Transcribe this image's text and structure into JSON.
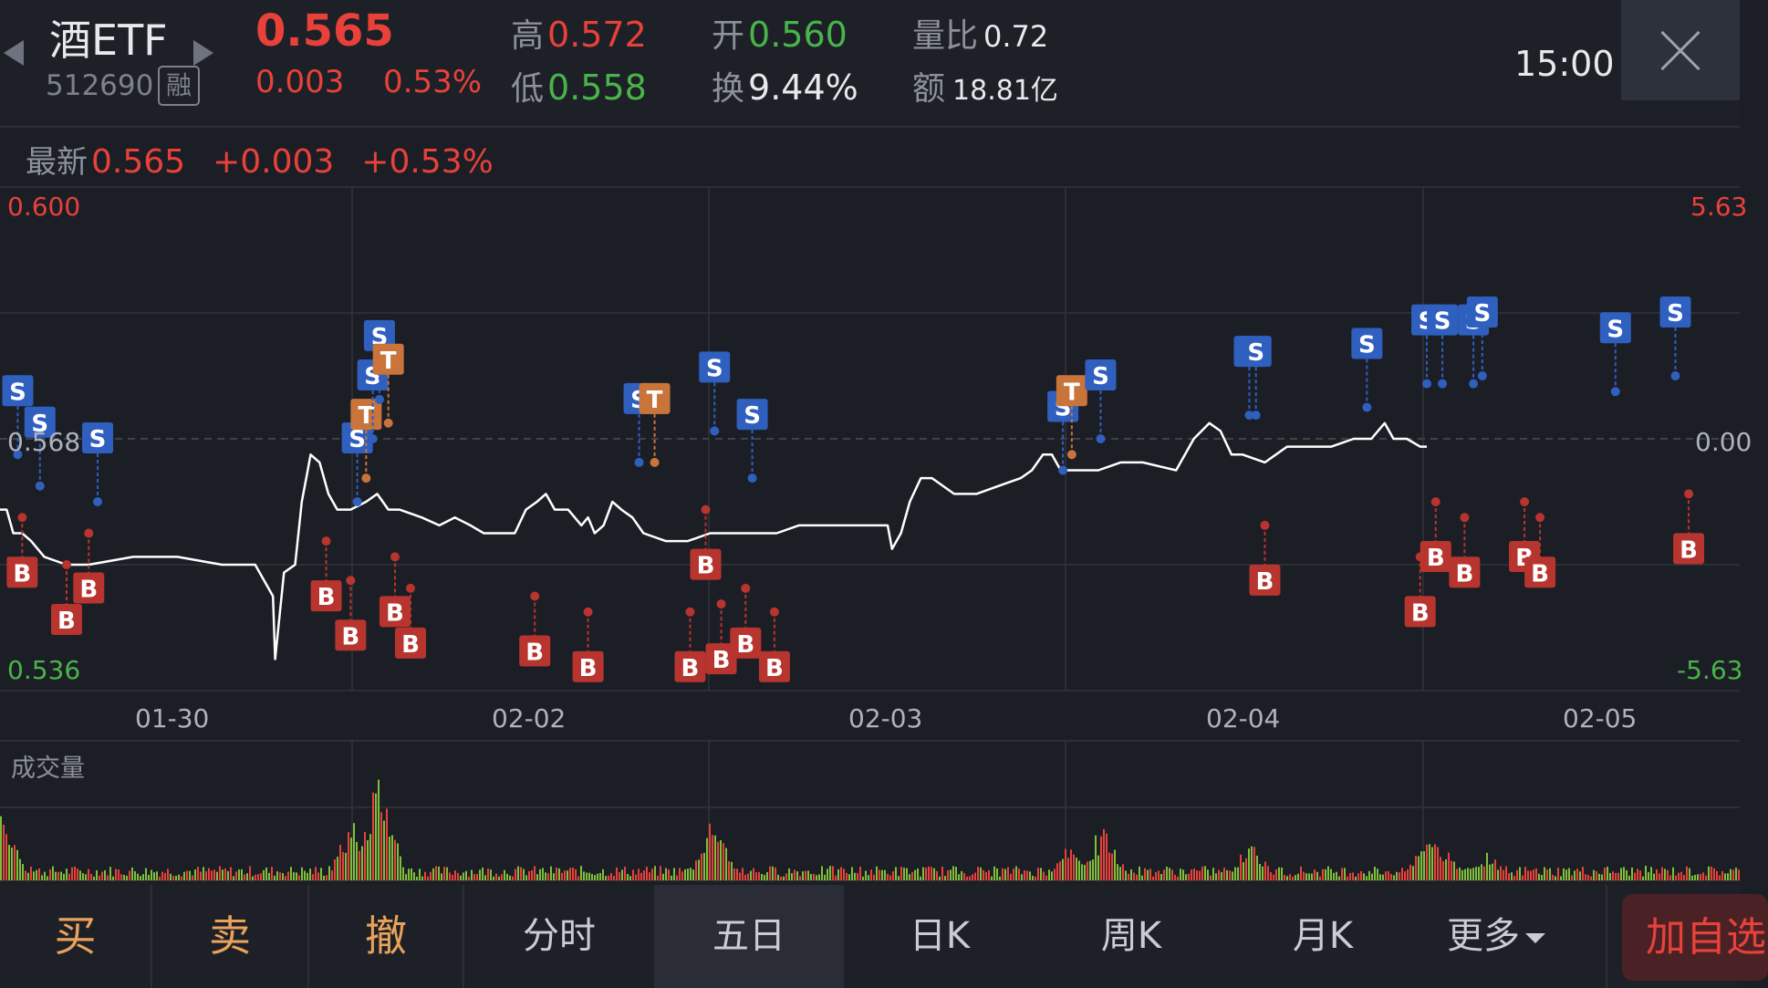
{
  "header": {
    "stock_name": "酒ETF",
    "stock_code": "512690",
    "margin_badge": "融",
    "price": "0.565",
    "change": "0.003",
    "change_pct": "0.53%",
    "high_label": "高",
    "high_value": "0.572",
    "low_label": "低",
    "low_value": "0.558",
    "open_label": "开",
    "open_value": "0.560",
    "turnover_label": "换",
    "turnover_value": "9.44%",
    "volume_ratio_label": "量比",
    "volume_ratio_value": "0.72",
    "amount_label": "额",
    "amount_value": "18.81亿",
    "time": "15:00"
  },
  "latest": {
    "label": "最新",
    "price": "0.565",
    "change": "+0.003",
    "change_pct": "+0.53%"
  },
  "chart_data": {
    "type": "line",
    "y_labels": {
      "top": "0.600",
      "mid": "0.568",
      "bottom": "0.536"
    },
    "right_labels": {
      "top": "5.63",
      "mid": "0.00",
      "bottom": "-5.63"
    },
    "x_labels": [
      "01-30",
      "02-02",
      "02-03",
      "02-04",
      "02-05"
    ],
    "volume_label": "成交量",
    "ylim": [
      0.536,
      0.6
    ],
    "reference": 0.568,
    "price_path": [
      [
        0,
        0.559
      ],
      [
        3,
        0.559
      ],
      [
        6,
        0.556
      ],
      [
        10,
        0.556
      ],
      [
        14,
        0.555
      ],
      [
        20,
        0.553
      ],
      [
        30,
        0.552
      ],
      [
        40,
        0.552
      ],
      [
        60,
        0.553
      ],
      [
        80,
        0.553
      ],
      [
        100,
        0.552
      ],
      [
        115,
        0.552
      ],
      [
        123,
        0.548
      ],
      [
        124,
        0.54
      ],
      [
        128,
        0.551
      ],
      [
        133,
        0.552
      ],
      [
        136,
        0.56
      ],
      [
        138,
        0.563
      ],
      [
        140,
        0.566
      ],
      [
        144,
        0.565
      ],
      [
        148,
        0.561
      ],
      [
        152,
        0.559
      ],
      [
        158,
        0.559
      ],
      [
        165,
        0.56
      ],
      [
        170,
        0.561
      ],
      [
        175,
        0.559
      ],
      [
        180,
        0.559
      ],
      [
        190,
        0.558
      ],
      [
        198,
        0.557
      ],
      [
        205,
        0.558
      ],
      [
        212,
        0.557
      ],
      [
        218,
        0.556
      ],
      [
        225,
        0.556
      ],
      [
        232,
        0.556
      ],
      [
        237,
        0.559
      ],
      [
        242,
        0.56
      ],
      [
        246,
        0.561
      ],
      [
        250,
        0.559
      ],
      [
        256,
        0.559
      ],
      [
        262,
        0.557
      ],
      [
        265,
        0.558
      ],
      [
        268,
        0.556
      ],
      [
        272,
        0.557
      ],
      [
        276,
        0.56
      ],
      [
        280,
        0.559
      ],
      [
        285,
        0.558
      ],
      [
        290,
        0.556
      ],
      [
        300,
        0.555
      ],
      [
        310,
        0.555
      ],
      [
        320,
        0.556
      ],
      [
        340,
        0.556
      ],
      [
        350,
        0.556
      ],
      [
        360,
        0.557
      ],
      [
        380,
        0.557
      ],
      [
        395,
        0.557
      ],
      [
        400,
        0.557
      ],
      [
        402,
        0.554
      ],
      [
        406,
        0.556
      ],
      [
        410,
        0.56
      ],
      [
        415,
        0.563
      ],
      [
        420,
        0.563
      ],
      [
        430,
        0.561
      ],
      [
        440,
        0.561
      ],
      [
        450,
        0.562
      ],
      [
        460,
        0.563
      ],
      [
        465,
        0.564
      ],
      [
        470,
        0.566
      ],
      [
        474,
        0.566
      ],
      [
        478,
        0.564
      ],
      [
        485,
        0.564
      ],
      [
        495,
        0.564
      ],
      [
        505,
        0.565
      ],
      [
        515,
        0.565
      ],
      [
        530,
        0.564
      ],
      [
        534,
        0.566
      ],
      [
        538,
        0.568
      ],
      [
        545,
        0.57
      ],
      [
        550,
        0.569
      ],
      [
        555,
        0.566
      ],
      [
        560,
        0.566
      ],
      [
        570,
        0.565
      ],
      [
        580,
        0.567
      ],
      [
        590,
        0.567
      ],
      [
        600,
        0.567
      ],
      [
        610,
        0.568
      ],
      [
        618,
        0.568
      ],
      [
        624,
        0.57
      ],
      [
        628,
        0.568
      ],
      [
        634,
        0.568
      ],
      [
        640,
        0.567
      ],
      [
        643,
        0.567
      ]
    ],
    "trade_markers": [
      {
        "type": "S",
        "x": 8,
        "price": 0.566,
        "color": "#2f5fbf"
      },
      {
        "type": "B",
        "x": 10,
        "price": 0.558,
        "color": "#b8342f"
      },
      {
        "type": "S",
        "x": 18,
        "price": 0.562,
        "color": "#2f5fbf"
      },
      {
        "type": "B",
        "x": 30,
        "price": 0.552,
        "color": "#b8342f"
      },
      {
        "type": "B",
        "x": 40,
        "price": 0.556,
        "color": "#b8342f"
      },
      {
        "type": "S",
        "x": 44,
        "price": 0.56,
        "color": "#2f5fbf"
      },
      {
        "type": "B",
        "x": 147,
        "price": 0.555,
        "color": "#b8342f"
      },
      {
        "type": "B",
        "x": 158,
        "price": 0.55,
        "color": "#b8342f"
      },
      {
        "type": "S",
        "x": 161,
        "price": 0.56,
        "color": "#2f5fbf"
      },
      {
        "type": "T",
        "x": 165,
        "price": 0.563,
        "color": "#c8743a"
      },
      {
        "type": "S",
        "x": 168,
        "price": 0.568,
        "color": "#2f5fbf"
      },
      {
        "type": "S",
        "x": 171,
        "price": 0.573,
        "color": "#2f5fbf"
      },
      {
        "type": "T",
        "x": 175,
        "price": 0.57,
        "color": "#c8743a"
      },
      {
        "type": "B",
        "x": 178,
        "price": 0.553,
        "color": "#b8342f"
      },
      {
        "type": "B",
        "x": 185,
        "price": 0.549,
        "color": "#b8342f"
      },
      {
        "type": "B",
        "x": 241,
        "price": 0.548,
        "color": "#b8342f"
      },
      {
        "type": "B",
        "x": 265,
        "price": 0.546,
        "color": "#b8342f"
      },
      {
        "type": "S",
        "x": 288,
        "price": 0.565,
        "color": "#2f5fbf"
      },
      {
        "type": "T",
        "x": 295,
        "price": 0.565,
        "color": "#c8743a"
      },
      {
        "type": "B",
        "x": 311,
        "price": 0.546,
        "color": "#b8342f"
      },
      {
        "type": "B",
        "x": 318,
        "price": 0.559,
        "color": "#b8342f"
      },
      {
        "type": "S",
        "x": 322,
        "price": 0.569,
        "color": "#2f5fbf"
      },
      {
        "type": "B",
        "x": 325,
        "price": 0.547,
        "color": "#b8342f"
      },
      {
        "type": "B",
        "x": 336,
        "price": 0.549,
        "color": "#b8342f"
      },
      {
        "type": "S",
        "x": 339,
        "price": 0.563,
        "color": "#2f5fbf"
      },
      {
        "type": "B",
        "x": 349,
        "price": 0.546,
        "color": "#b8342f"
      },
      {
        "type": "S",
        "x": 479,
        "price": 0.564,
        "color": "#2f5fbf"
      },
      {
        "type": "T",
        "x": 483,
        "price": 0.566,
        "color": "#c8743a"
      },
      {
        "type": "S",
        "x": 496,
        "price": 0.568,
        "color": "#2f5fbf"
      },
      {
        "type": "S",
        "x": 563,
        "price": 0.571,
        "color": "#2f5fbf"
      },
      {
        "type": "S",
        "x": 566,
        "price": 0.571,
        "color": "#2f5fbf"
      },
      {
        "type": "B",
        "x": 570,
        "price": 0.557,
        "color": "#b8342f"
      },
      {
        "type": "S",
        "x": 616,
        "price": 0.572,
        "color": "#2f5fbf"
      },
      {
        "type": "B",
        "x": 640,
        "price": 0.553,
        "color": "#b8342f"
      },
      {
        "type": "S",
        "x": 643,
        "price": 0.575,
        "color": "#2f5fbf"
      },
      {
        "type": "S",
        "x": 650,
        "price": 0.575,
        "color": "#2f5fbf"
      },
      {
        "type": "B",
        "x": 647,
        "price": 0.56,
        "color": "#b8342f"
      },
      {
        "type": "S",
        "x": 664,
        "price": 0.575,
        "color": "#2f5fbf"
      },
      {
        "type": "B",
        "x": 660,
        "price": 0.558,
        "color": "#b8342f"
      },
      {
        "type": "S",
        "x": 668,
        "price": 0.576,
        "color": "#2f5fbf"
      },
      {
        "type": "B",
        "x": 687,
        "price": 0.56,
        "color": "#b8342f"
      },
      {
        "type": "B",
        "x": 694,
        "price": 0.558,
        "color": "#b8342f"
      },
      {
        "type": "S",
        "x": 728,
        "price": 0.574,
        "color": "#2f5fbf"
      },
      {
        "type": "S",
        "x": 755,
        "price": 0.576,
        "color": "#2f5fbf"
      },
      {
        "type": "B",
        "x": 761,
        "price": 0.561,
        "color": "#b8342f"
      }
    ]
  },
  "toolbar": {
    "buy": "买",
    "sell": "卖",
    "cancel": "撤",
    "intraday": "分时",
    "five_day": "五日",
    "day_k": "日K",
    "week_k": "周K",
    "month_k": "月K",
    "more": "更多",
    "add_watchlist": "加自选"
  },
  "colors": {
    "background": "#1c1e25",
    "up": "#e8413a",
    "down": "#48b44a",
    "grid": "#31343d",
    "active_tab": "#2a2d36"
  }
}
